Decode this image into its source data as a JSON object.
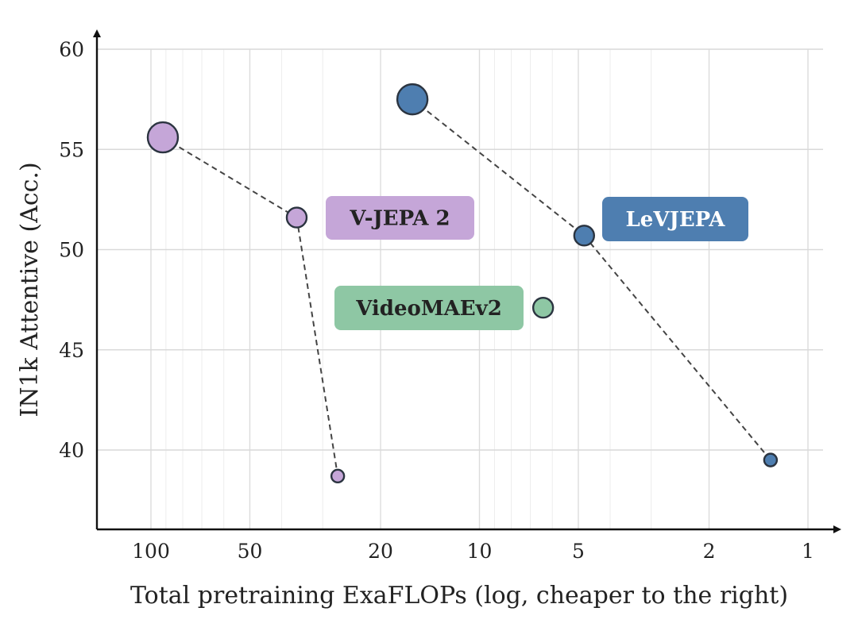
{
  "chart_data": {
    "type": "scatter",
    "xlabel": "Total pretraining ExaFLOPs (log, cheaper to the right)",
    "ylabel": "IN1k Attentive (Acc.)",
    "x_scale": "log",
    "x_reversed": true,
    "xlim": [
      130,
      0.95
    ],
    "ylim": [
      36,
      60
    ],
    "x_ticks": [
      100,
      50,
      20,
      10,
      5,
      2,
      1
    ],
    "x_tick_labels": [
      "100",
      "50",
      "20",
      "10",
      "5",
      "2",
      "1"
    ],
    "y_ticks": [
      40,
      45,
      50,
      55,
      60
    ],
    "y_tick_labels": [
      "40",
      "45",
      "50",
      "55",
      "60"
    ],
    "grid": true,
    "series": [
      {
        "name": "V-JEPA 2",
        "color": "#c5a6d8",
        "connected": true,
        "points": [
          {
            "x": 92,
            "y": 55.6,
            "size": "large"
          },
          {
            "x": 36,
            "y": 51.6,
            "size": "medium"
          },
          {
            "x": 27,
            "y": 38.7,
            "size": "small"
          }
        ]
      },
      {
        "name": "LeVJEPA",
        "color": "#4e7eb0",
        "connected": true,
        "points": [
          {
            "x": 16,
            "y": 57.5,
            "size": "large"
          },
          {
            "x": 4.8,
            "y": 50.7,
            "size": "medium"
          },
          {
            "x": 1.3,
            "y": 39.5,
            "size": "small"
          }
        ]
      },
      {
        "name": "VideoMAEv2",
        "color": "#8ec7a4",
        "connected": false,
        "points": [
          {
            "x": 6.4,
            "y": 47.1,
            "size": "medium"
          }
        ]
      }
    ],
    "series_label_text_colors": [
      "#222222",
      "#ffffff",
      "#222222"
    ]
  }
}
